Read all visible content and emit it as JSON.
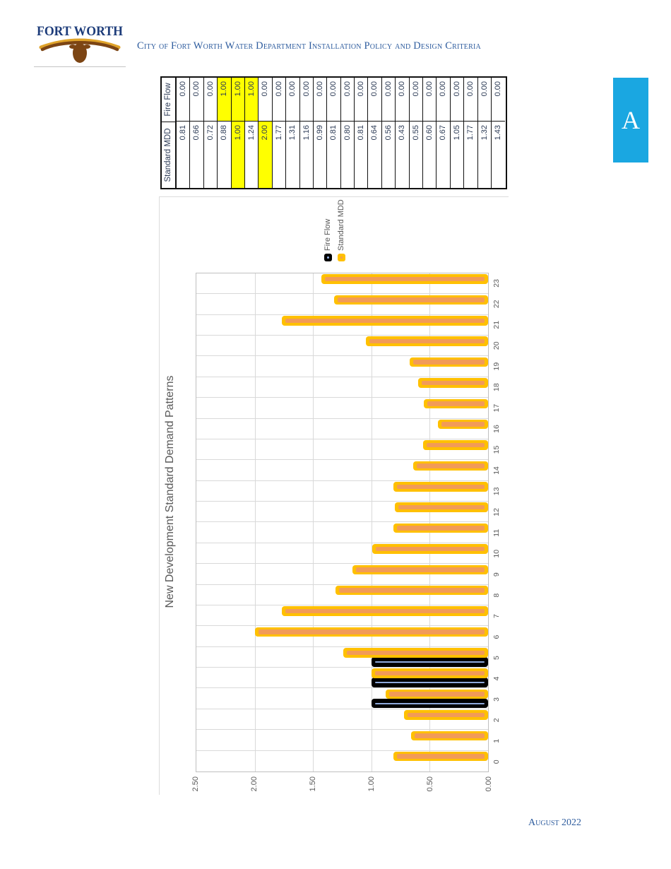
{
  "page": {
    "tab_label": "A",
    "footer": "August 2022"
  },
  "header": {
    "logo_text": "Fort Worth",
    "title": "City of Fort Worth Water Department Installation Policy and Design Criteria"
  },
  "table": {
    "headers": [
      "Standard MDD",
      "Fire Flow"
    ],
    "standard_mdd": [
      "0.81",
      "0.66",
      "0.72",
      "0.88",
      "1.00",
      "1.24",
      "2.00",
      "1.77",
      "1.31",
      "1.16",
      "0.99",
      "0.81",
      "0.80",
      "0.81",
      "0.64",
      "0.56",
      "0.43",
      "0.55",
      "0.60",
      "0.67",
      "1.05",
      "1.77",
      "1.32",
      "1.43"
    ],
    "fire_flow": [
      "0.00",
      "0.00",
      "0.00",
      "1.00",
      "1.00",
      "1.00",
      "0.00",
      "0.00",
      "0.00",
      "0.00",
      "0.00",
      "0.00",
      "0.00",
      "0.00",
      "0.00",
      "0.00",
      "0.00",
      "0.00",
      "0.00",
      "0.00",
      "0.00",
      "0.00",
      "0.00",
      "0.00"
    ],
    "mdd_highlight_rows": [
      4,
      6
    ],
    "ff_highlight_rows": [
      3,
      4,
      5
    ],
    "highlight_color": "#FFFF00"
  },
  "chart_data": {
    "type": "bar",
    "title": "New Development Standard Demand Patterns",
    "categories": [
      0,
      1,
      2,
      3,
      4,
      5,
      6,
      7,
      8,
      9,
      10,
      11,
      12,
      13,
      14,
      15,
      16,
      17,
      18,
      19,
      20,
      21,
      22,
      23
    ],
    "series": [
      {
        "name": "Fire Flow",
        "color": "#000000",
        "stripe_color": "#8FAADC",
        "values": [
          0,
          0,
          0,
          1.0,
          1.0,
          1.0,
          0,
          0,
          0,
          0,
          0,
          0,
          0,
          0,
          0,
          0,
          0,
          0,
          0,
          0,
          0,
          0,
          0,
          0
        ]
      },
      {
        "name": "Standard MDD",
        "color": "#FFC000",
        "stripe_color": "#F29B57",
        "values": [
          0.81,
          0.66,
          0.72,
          0.88,
          1.0,
          1.24,
          2.0,
          1.77,
          1.31,
          1.16,
          0.99,
          0.81,
          0.8,
          0.81,
          0.64,
          0.56,
          0.43,
          0.55,
          0.6,
          0.67,
          1.05,
          1.77,
          1.32,
          1.43
        ]
      }
    ],
    "xlabel": "",
    "ylabel": "",
    "ylim": [
      0,
      2.5
    ],
    "ytick_step": 0.5,
    "ytick_labels": [
      "2.50",
      "2.00",
      "1.50",
      "1.00",
      "0.50",
      "0.00"
    ],
    "grid": true,
    "legend_position": "right",
    "note": "chart rendered rotated 90 degrees counter-clockwise on the page"
  },
  "colors": {
    "grid": "#D9D9D9",
    "plot_border": "#BFBFBF",
    "axis_text": "#595959",
    "tab_blue": "#1AA7E1",
    "header_blue": "#2E5C9E",
    "table_text": "#2B3A55"
  }
}
